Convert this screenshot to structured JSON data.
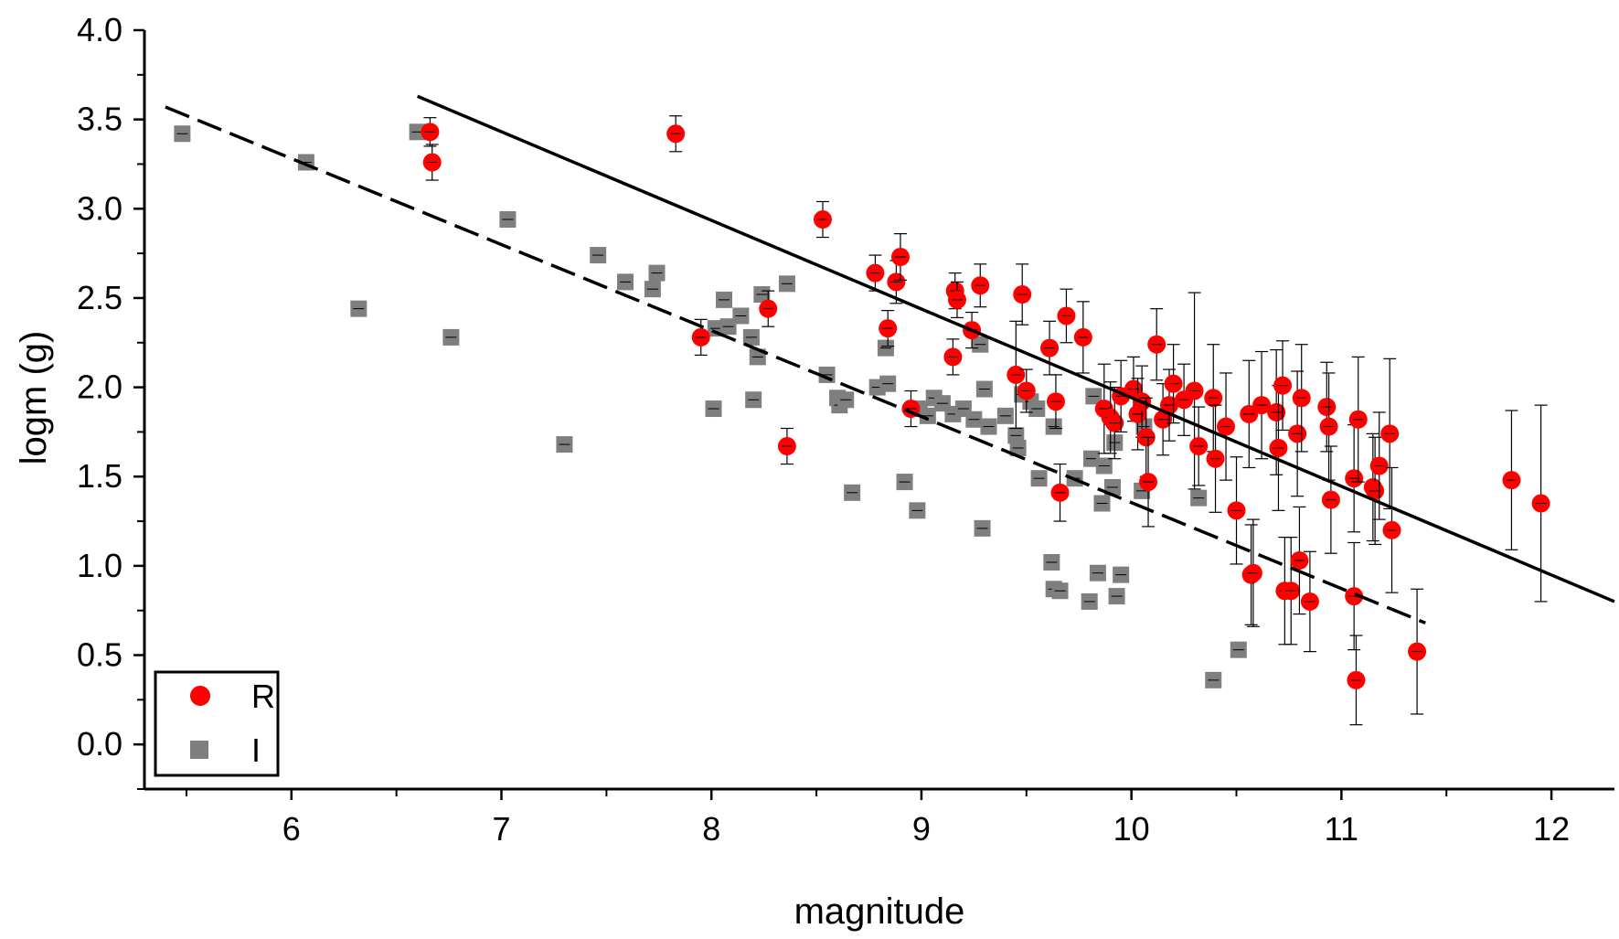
{
  "chart_data": {
    "type": "scatter",
    "xlabel": "magnitude",
    "ylabel": "logm (g)",
    "xlim": [
      5.3,
      12.3
    ],
    "ylim": [
      -0.25,
      4.0
    ],
    "x_ticks": [
      "6",
      "7",
      "8",
      "9",
      "10",
      "11",
      "12"
    ],
    "y_ticks": [
      "0.0",
      "0.5",
      "1.0",
      "1.5",
      "2.0",
      "2.5",
      "3.0",
      "3.5",
      "4.0"
    ],
    "grid": false,
    "legend_position": "bottom-left",
    "colors": {
      "R": "#ff0000",
      "I": "#7f7f7f",
      "axes": "#000000"
    },
    "series": [
      {
        "name": "R",
        "marker": "circle",
        "points": [
          {
            "x": 6.66,
            "y": 3.43,
            "err": 0.08
          },
          {
            "x": 6.67,
            "y": 3.26,
            "err": 0.1
          },
          {
            "x": 7.83,
            "y": 3.42,
            "err": 0.1
          },
          {
            "x": 7.95,
            "y": 2.28,
            "err": 0.1
          },
          {
            "x": 8.27,
            "y": 2.44,
            "err": 0.1
          },
          {
            "x": 8.36,
            "y": 1.67,
            "err": 0.1
          },
          {
            "x": 8.53,
            "y": 2.94,
            "err": 0.1
          },
          {
            "x": 8.78,
            "y": 2.64,
            "err": 0.1
          },
          {
            "x": 8.84,
            "y": 2.33,
            "err": 0.1
          },
          {
            "x": 8.88,
            "y": 2.59,
            "err": 0.12
          },
          {
            "x": 8.9,
            "y": 2.73,
            "err": 0.13
          },
          {
            "x": 8.95,
            "y": 1.88,
            "err": 0.1
          },
          {
            "x": 9.15,
            "y": 2.17,
            "err": 0.1
          },
          {
            "x": 9.16,
            "y": 2.54,
            "err": 0.1
          },
          {
            "x": 9.17,
            "y": 2.49,
            "err": 0.1
          },
          {
            "x": 9.24,
            "y": 2.32,
            "err": 0.1
          },
          {
            "x": 9.28,
            "y": 2.57,
            "err": 0.12
          },
          {
            "x": 9.45,
            "y": 2.07,
            "err": 0.3
          },
          {
            "x": 9.48,
            "y": 2.52,
            "err": 0.17
          },
          {
            "x": 9.5,
            "y": 1.98,
            "err": 0.12
          },
          {
            "x": 9.61,
            "y": 2.22,
            "err": 0.15
          },
          {
            "x": 9.64,
            "y": 1.92,
            "err": 0.15
          },
          {
            "x": 9.66,
            "y": 1.41,
            "err": 0.16
          },
          {
            "x": 9.69,
            "y": 2.4,
            "err": 0.15
          },
          {
            "x": 9.77,
            "y": 2.28,
            "err": 0.2
          },
          {
            "x": 9.87,
            "y": 1.88,
            "err": 0.25
          },
          {
            "x": 9.9,
            "y": 1.83,
            "err": 0.2
          },
          {
            "x": 9.92,
            "y": 1.8,
            "err": 0.2
          },
          {
            "x": 9.95,
            "y": 1.95,
            "err": 0.2
          },
          {
            "x": 10.01,
            "y": 1.99,
            "err": 0.18
          },
          {
            "x": 10.03,
            "y": 1.85,
            "err": 0.2
          },
          {
            "x": 10.05,
            "y": 1.92,
            "err": 0.2
          },
          {
            "x": 10.07,
            "y": 1.72,
            "err": 0.22
          },
          {
            "x": 10.08,
            "y": 1.47,
            "err": 0.25
          },
          {
            "x": 10.12,
            "y": 2.24,
            "err": 0.2
          },
          {
            "x": 10.15,
            "y": 1.82,
            "err": 0.2
          },
          {
            "x": 10.18,
            "y": 1.9,
            "err": 0.2
          },
          {
            "x": 10.2,
            "y": 2.02,
            "err": 0.22
          },
          {
            "x": 10.25,
            "y": 1.93,
            "err": 0.2
          },
          {
            "x": 10.3,
            "y": 1.98,
            "err": 0.55
          },
          {
            "x": 10.32,
            "y": 1.67,
            "err": 0.22
          },
          {
            "x": 10.39,
            "y": 1.94,
            "err": 0.3
          },
          {
            "x": 10.4,
            "y": 1.6,
            "err": 0.3
          },
          {
            "x": 10.45,
            "y": 1.78,
            "err": 0.3
          },
          {
            "x": 10.5,
            "y": 1.31,
            "err": 0.3
          },
          {
            "x": 10.56,
            "y": 1.85,
            "err": 0.3
          },
          {
            "x": 10.57,
            "y": 0.95,
            "err": 0.28
          },
          {
            "x": 10.58,
            "y": 0.96,
            "err": 0.3
          },
          {
            "x": 10.62,
            "y": 1.9,
            "err": 0.3
          },
          {
            "x": 10.69,
            "y": 1.86,
            "err": 0.35
          },
          {
            "x": 10.7,
            "y": 1.66,
            "err": 0.35
          },
          {
            "x": 10.72,
            "y": 2.01,
            "err": 0.25
          },
          {
            "x": 10.73,
            "y": 0.86,
            "err": 0.3
          },
          {
            "x": 10.76,
            "y": 0.86,
            "err": 0.3
          },
          {
            "x": 10.79,
            "y": 1.74,
            "err": 0.35
          },
          {
            "x": 10.8,
            "y": 1.03,
            "err": 0.3
          },
          {
            "x": 10.81,
            "y": 1.94,
            "err": 0.3
          },
          {
            "x": 10.85,
            "y": 0.8,
            "err": 0.28
          },
          {
            "x": 10.93,
            "y": 1.89,
            "err": 0.25
          },
          {
            "x": 10.94,
            "y": 1.78,
            "err": 0.3
          },
          {
            "x": 10.95,
            "y": 1.37,
            "err": 0.3
          },
          {
            "x": 11.06,
            "y": 1.49,
            "err": 0.3
          },
          {
            "x": 11.07,
            "y": 0.36,
            "err": 0.25
          },
          {
            "x": 11.06,
            "y": 0.83,
            "err": 0.3
          },
          {
            "x": 11.08,
            "y": 1.82,
            "err": 0.35
          },
          {
            "x": 11.15,
            "y": 1.44,
            "err": 0.3
          },
          {
            "x": 11.16,
            "y": 1.42,
            "err": 0.3
          },
          {
            "x": 11.18,
            "y": 1.56,
            "err": 0.3
          },
          {
            "x": 11.23,
            "y": 1.74,
            "err": 0.42
          },
          {
            "x": 11.24,
            "y": 1.2,
            "err": 0.35
          },
          {
            "x": 11.36,
            "y": 0.52,
            "err": 0.35
          },
          {
            "x": 11.81,
            "y": 1.48,
            "err": 0.39
          },
          {
            "x": 11.95,
            "y": 1.35,
            "err": 0.55
          }
        ]
      },
      {
        "name": "I",
        "marker": "square",
        "points": [
          {
            "x": 5.48,
            "y": 3.42,
            "err": 0.03
          },
          {
            "x": 6.07,
            "y": 3.26,
            "err": 0.03
          },
          {
            "x": 6.32,
            "y": 2.44,
            "err": 0.03
          },
          {
            "x": 6.6,
            "y": 3.43,
            "err": 0.03
          },
          {
            "x": 6.76,
            "y": 2.28,
            "err": 0.03
          },
          {
            "x": 7.03,
            "y": 2.94,
            "err": 0.03
          },
          {
            "x": 7.3,
            "y": 1.68,
            "err": 0.03
          },
          {
            "x": 7.46,
            "y": 2.74,
            "err": 0.03
          },
          {
            "x": 7.59,
            "y": 2.59,
            "err": 0.03
          },
          {
            "x": 7.72,
            "y": 2.55,
            "err": 0.03
          },
          {
            "x": 7.74,
            "y": 2.64,
            "err": 0.03
          },
          {
            "x": 8.01,
            "y": 1.88,
            "err": 0.03
          },
          {
            "x": 8.02,
            "y": 2.33,
            "err": 0.03
          },
          {
            "x": 8.06,
            "y": 2.49,
            "err": 0.03
          },
          {
            "x": 8.08,
            "y": 2.34,
            "err": 0.03
          },
          {
            "x": 8.14,
            "y": 2.4,
            "err": 0.03
          },
          {
            "x": 8.19,
            "y": 2.28,
            "err": 0.03
          },
          {
            "x": 8.2,
            "y": 1.93,
            "err": 0.03
          },
          {
            "x": 8.22,
            "y": 2.17,
            "err": 0.03
          },
          {
            "x": 8.24,
            "y": 2.52,
            "err": 0.03
          },
          {
            "x": 8.36,
            "y": 2.58,
            "err": 0.03
          },
          {
            "x": 8.55,
            "y": 2.07,
            "err": 0.03
          },
          {
            "x": 8.6,
            "y": 1.94,
            "err": 0.03
          },
          {
            "x": 8.61,
            "y": 1.9,
            "err": 0.03
          },
          {
            "x": 8.64,
            "y": 1.93,
            "err": 0.03
          },
          {
            "x": 8.67,
            "y": 1.41,
            "err": 0.03
          },
          {
            "x": 8.79,
            "y": 2.0,
            "err": 0.03
          },
          {
            "x": 8.83,
            "y": 2.22,
            "err": 0.03
          },
          {
            "x": 8.84,
            "y": 2.02,
            "err": 0.03
          },
          {
            "x": 8.92,
            "y": 1.47,
            "err": 0.03
          },
          {
            "x": 8.98,
            "y": 1.31,
            "err": 0.03
          },
          {
            "x": 8.99,
            "y": 1.88,
            "err": 0.03
          },
          {
            "x": 9.03,
            "y": 1.84,
            "err": 0.03
          },
          {
            "x": 9.06,
            "y": 1.94,
            "err": 0.03
          },
          {
            "x": 9.1,
            "y": 1.91,
            "err": 0.03
          },
          {
            "x": 9.15,
            "y": 1.85,
            "err": 0.03
          },
          {
            "x": 9.2,
            "y": 1.88,
            "err": 0.03
          },
          {
            "x": 9.25,
            "y": 1.82,
            "err": 0.03
          },
          {
            "x": 9.28,
            "y": 2.24,
            "err": 0.03
          },
          {
            "x": 9.29,
            "y": 1.21,
            "err": 0.03
          },
          {
            "x": 9.3,
            "y": 1.99,
            "err": 0.03
          },
          {
            "x": 9.32,
            "y": 1.78,
            "err": 0.03
          },
          {
            "x": 9.4,
            "y": 1.84,
            "err": 0.03
          },
          {
            "x": 9.45,
            "y": 1.73,
            "err": 0.03
          },
          {
            "x": 9.46,
            "y": 1.66,
            "err": 0.03
          },
          {
            "x": 9.48,
            "y": 1.96,
            "err": 0.03
          },
          {
            "x": 9.52,
            "y": 1.92,
            "err": 0.03
          },
          {
            "x": 9.55,
            "y": 1.88,
            "err": 0.03
          },
          {
            "x": 9.56,
            "y": 1.49,
            "err": 0.03
          },
          {
            "x": 9.62,
            "y": 1.02,
            "err": 0.03
          },
          {
            "x": 9.63,
            "y": 0.87,
            "err": 0.03
          },
          {
            "x": 9.63,
            "y": 1.78,
            "err": 0.03
          },
          {
            "x": 9.66,
            "y": 0.86,
            "err": 0.03
          },
          {
            "x": 9.73,
            "y": 1.49,
            "err": 0.03
          },
          {
            "x": 9.8,
            "y": 0.8,
            "err": 0.03
          },
          {
            "x": 9.81,
            "y": 1.6,
            "err": 0.03
          },
          {
            "x": 9.82,
            "y": 1.95,
            "err": 0.03
          },
          {
            "x": 9.84,
            "y": 0.96,
            "err": 0.03
          },
          {
            "x": 9.86,
            "y": 1.35,
            "err": 0.03
          },
          {
            "x": 9.87,
            "y": 1.56,
            "err": 0.03
          },
          {
            "x": 9.91,
            "y": 1.44,
            "err": 0.03
          },
          {
            "x": 9.92,
            "y": 1.69,
            "err": 0.03
          },
          {
            "x": 9.93,
            "y": 0.83,
            "err": 0.03
          },
          {
            "x": 9.95,
            "y": 0.95,
            "err": 0.03
          },
          {
            "x": 10.05,
            "y": 1.42,
            "err": 0.03
          },
          {
            "x": 10.06,
            "y": 1.78,
            "err": 0.03
          },
          {
            "x": 10.32,
            "y": 1.38,
            "err": 0.03
          },
          {
            "x": 10.39,
            "y": 0.36,
            "err": 0.03
          },
          {
            "x": 10.51,
            "y": 0.53,
            "err": 0.03
          }
        ]
      }
    ],
    "fit_lines": [
      {
        "series": "R",
        "style": "solid",
        "x": [
          6.6,
          12.3
        ],
        "y": [
          3.63,
          0.8
        ]
      },
      {
        "series": "I",
        "style": "dashed",
        "x": [
          5.4,
          11.4
        ],
        "y": [
          3.57,
          0.68
        ]
      }
    ]
  }
}
